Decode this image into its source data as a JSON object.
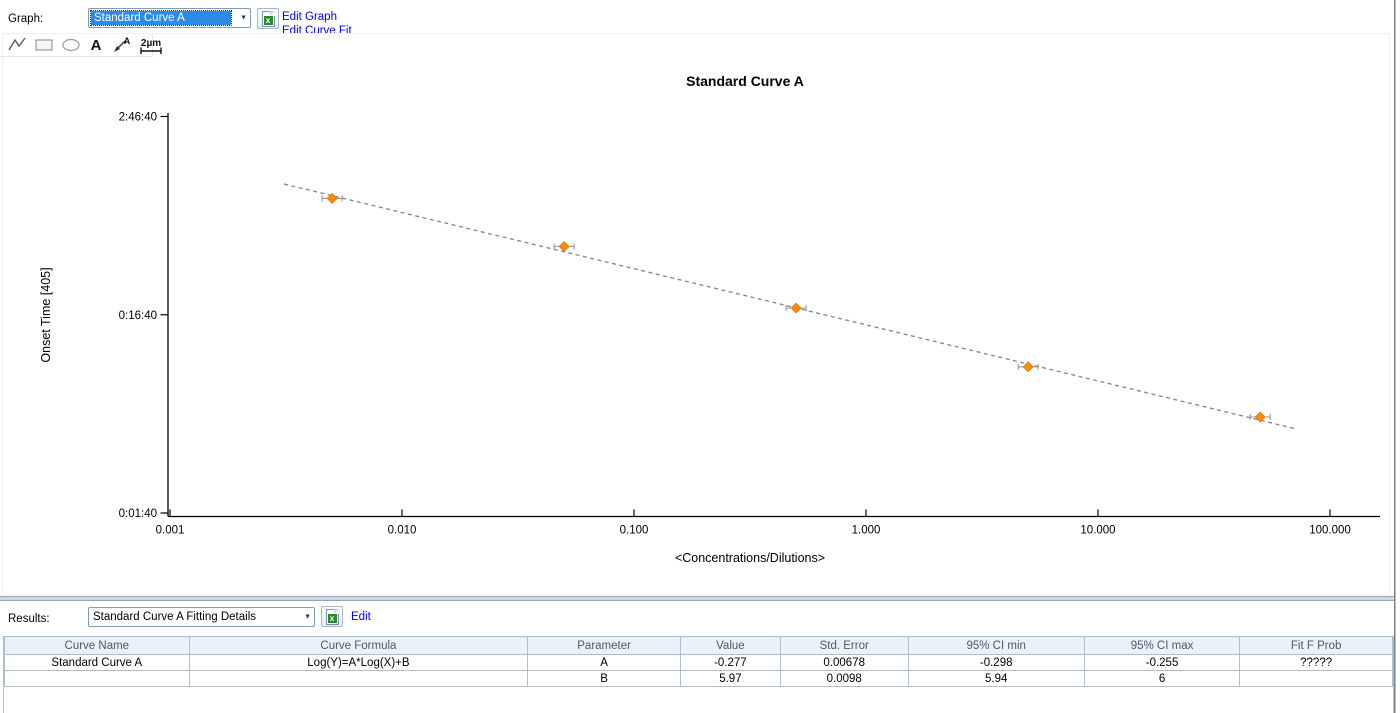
{
  "header": {
    "graph_label": "Graph:",
    "graph_dropdown_value": "Standard Curve A",
    "edit_graph_label": "Edit Graph",
    "edit_curve_fit_label": "Edit Curve Fit"
  },
  "toolbar": {
    "tools": [
      "polyline-tool",
      "rectangle-tool",
      "ellipse-tool",
      "text-tool",
      "arrow-annotation-tool",
      "scale-bar-tool"
    ],
    "text_tool_label": "A",
    "arrow_tool_label": "A",
    "scale_bar_text": "2µm"
  },
  "results_bar": {
    "label": "Results:",
    "dropdown_value": "Standard Curve A Fitting Details",
    "edit_label": "Edit"
  },
  "table": {
    "columns": [
      "Curve Name",
      "Curve Formula",
      "Parameter",
      "Value",
      "Std. Error",
      "95% CI min",
      "95% CI max",
      "Fit F Prob"
    ],
    "rows": [
      [
        "Standard Curve A",
        "Log(Y)=A*Log(X)+B",
        "A",
        "-0.277",
        "0.00678",
        "-0.298",
        "-0.255",
        "?????"
      ],
      [
        "",
        "",
        "B",
        "5.97",
        "0.0098",
        "5.94",
        "6",
        ""
      ]
    ]
  },
  "chart_data": {
    "type": "scatter",
    "title": "Standard Curve A",
    "xlabel": "<Concentrations/Dilutions>",
    "ylabel": "Onset Time [405]",
    "x_scale": "log",
    "y_scale": "log",
    "xlim": [
      0.001,
      100
    ],
    "ylim_seconds": [
      100,
      10000
    ],
    "grid": false,
    "x_ticks": {
      "values": [
        0.001,
        0.01,
        0.1,
        1,
        10,
        100
      ],
      "labels": [
        "0.001",
        "0.010",
        "0.100",
        "1.000",
        "10.000",
        "100.000"
      ]
    },
    "y_ticks": {
      "seconds": [
        10000,
        1000,
        100
      ],
      "labels": [
        "2:46:40",
        "0:16:40",
        "0:01:40"
      ]
    },
    "points": [
      {
        "x": 0.005,
        "y_seconds": 3860,
        "y_time": "1:04:20"
      },
      {
        "x": 0.05,
        "y_seconds": 2210,
        "y_time": "0:36:50"
      },
      {
        "x": 0.5,
        "y_seconds": 1080,
        "y_time": "0:18:00"
      },
      {
        "x": 5,
        "y_seconds": 546,
        "y_time": "0:09:06"
      },
      {
        "x": 50,
        "y_seconds": 305,
        "y_time": "0:05:05"
      }
    ],
    "fit_line": {
      "style": "dashed",
      "x1": 0.0031,
      "y1_seconds": 4566,
      "x2": 72,
      "y2_seconds": 265
    },
    "marker": {
      "shape": "diamond",
      "color": "#FF8A00",
      "edge_color": "#D96E00",
      "error_bar_color": "#999999"
    },
    "colors": {
      "axis": "#000000",
      "fit_line": "#848484"
    }
  },
  "colors": {
    "link_blue": "#0000EE",
    "selection_blue": "#2D8BE8",
    "table_border": "#A9BFD3",
    "table_header_bg": "#EAF1F8"
  }
}
